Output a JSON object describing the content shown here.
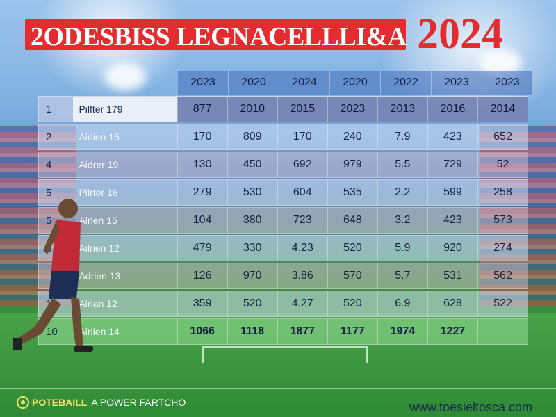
{
  "title": {
    "main": "2ODESBISS LEGNACELLLI&A",
    "year": "2024"
  },
  "table": {
    "headers": [
      "2023",
      "2020",
      "2024",
      "2020",
      "2022",
      "2023",
      "2023"
    ],
    "rows": [
      {
        "rank": "1",
        "name": "Pilfter 179",
        "values": [
          "877",
          "2010",
          "2015",
          "2023",
          "2013",
          "2016",
          "2014"
        ]
      },
      {
        "rank": "2",
        "name": "Airlien 15",
        "values": [
          "170",
          "809",
          "170",
          "240",
          "7.9",
          "423",
          "652"
        ]
      },
      {
        "rank": "4",
        "name": "Aidrer 19",
        "values": [
          "130",
          "450",
          "692",
          "979",
          "5.5",
          "729",
          "52"
        ]
      },
      {
        "rank": "5",
        "name": "Pilrter 16",
        "values": [
          "279",
          "530",
          "604",
          "535",
          "2.2",
          "599",
          "258"
        ]
      },
      {
        "rank": "5",
        "name": "Airlen 15",
        "values": [
          "104",
          "380",
          "723",
          "648",
          "3.2",
          "423",
          "573"
        ]
      },
      {
        "rank": "6",
        "name": "Ailrien 12",
        "values": [
          "479",
          "330",
          "4.23",
          "520",
          "5.9",
          "920",
          "274"
        ]
      },
      {
        "rank": "",
        "name": "Adrien 13",
        "values": [
          "126",
          "970",
          "3.86",
          "570",
          "5.7",
          "531",
          "562"
        ]
      },
      {
        "rank": "13",
        "name": "Airlan 12",
        "values": [
          "359",
          "520",
          "4.27",
          "520",
          "6.9",
          "628",
          "522"
        ]
      },
      {
        "rank": "10",
        "name": "Airlien 14",
        "values": [
          "1066",
          "1118",
          "1877",
          "1177",
          "1974",
          "1227",
          ""
        ]
      }
    ]
  },
  "footer": {
    "brand": "POTEBAILL",
    "tagline": "A POWER FARTCHO",
    "url": "www.toesieltosca.com"
  },
  "colors": {
    "title_red": "#e52b2f",
    "footer_yellow": "#f6e46a"
  }
}
